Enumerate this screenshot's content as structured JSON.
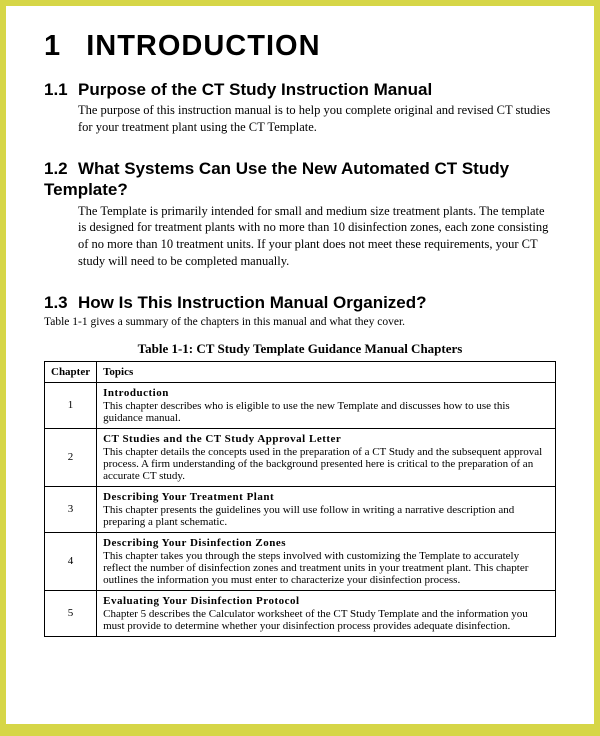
{
  "chapter": {
    "number": "1",
    "title": "INTRODUCTION"
  },
  "sections": [
    {
      "num": "1.1",
      "heading": "Purpose of the CT Study Instruction Manual",
      "body": "The purpose of this instruction manual is to help you complete original and revised CT studies for your treatment plant using the CT Template."
    },
    {
      "num": "1.2",
      "heading": "What Systems Can Use the New Automated CT Study Template?",
      "body": "The Template is primarily intended for small and medium size treatment plants.  The template is designed for treatment plants with no more than 10 disinfection zones, each zone consisting of no more than 10 treatment units.  If your plant does not meet these requirements, your CT study will need to be completed manually."
    },
    {
      "num": "1.3",
      "heading": "How Is This Instruction Manual Organized?",
      "body": "Table 1-1 gives a summary of the chapters in this manual and what they cover."
    }
  ],
  "table": {
    "caption": "Table 1-1: CT Study Template Guidance Manual Chapters",
    "columns": [
      "Chapter",
      "Topics"
    ],
    "rows": [
      {
        "chapter": "1",
        "title": "Introduction",
        "desc": "This chapter describes who is eligible to use the new Template and discusses how to use this guidance manual."
      },
      {
        "chapter": "2",
        "title": "CT Studies and the CT Study Approval Letter",
        "desc": "This chapter details the concepts used in the preparation of a CT Study and the subsequent approval process.  A firm understanding of the background presented here is critical to the preparation of an accurate CT study."
      },
      {
        "chapter": "3",
        "title": "Describing Your Treatment Plant",
        "desc": "This chapter presents the guidelines you will use follow in writing a narrative description and preparing a plant schematic."
      },
      {
        "chapter": "4",
        "title": "Describing Your Disinfection Zones",
        "desc": "This chapter takes you through the steps involved with customizing the Template to accurately reflect the number of disinfection zones and treatment units in your treatment plant.  This chapter outlines the information you must enter to characterize your disinfection process."
      },
      {
        "chapter": "5",
        "title": "Evaluating Your Disinfection Protocol",
        "desc": "Chapter 5 describes the Calculator worksheet of the CT Study Template and the information you must provide to determine whether your disinfection process provides adequate disinfection."
      }
    ]
  }
}
